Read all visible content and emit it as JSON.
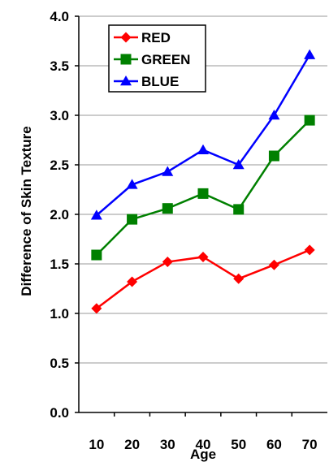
{
  "chart_data": {
    "type": "line",
    "title": "",
    "xlabel": "Age",
    "ylabel": "Difference of Skin Texture",
    "x": [
      10,
      20,
      30,
      40,
      50,
      60,
      70
    ],
    "xlim": [
      5,
      75
    ],
    "ylim": [
      0,
      4
    ],
    "y_ticks": [
      "0.0",
      "0.5",
      "1.0",
      "1.5",
      "2.0",
      "2.5",
      "3.0",
      "3.5",
      "4.0"
    ],
    "x_ticks": [
      "10",
      "20",
      "30",
      "40",
      "50",
      "60",
      "70"
    ],
    "grid": "horizontal",
    "legend_position": "top-left",
    "series": [
      {
        "name": "RED",
        "color": "#ff0000",
        "marker": "diamond",
        "values": [
          1.05,
          1.32,
          1.52,
          1.57,
          1.35,
          1.49,
          1.64
        ]
      },
      {
        "name": "GREEN",
        "color": "#008000",
        "marker": "square",
        "values": [
          1.59,
          1.95,
          2.06,
          2.21,
          2.05,
          2.59,
          2.95
        ]
      },
      {
        "name": "BLUE",
        "color": "#0000ff",
        "marker": "triangle",
        "values": [
          1.99,
          2.3,
          2.43,
          2.65,
          2.5,
          3.0,
          3.61
        ]
      }
    ]
  }
}
